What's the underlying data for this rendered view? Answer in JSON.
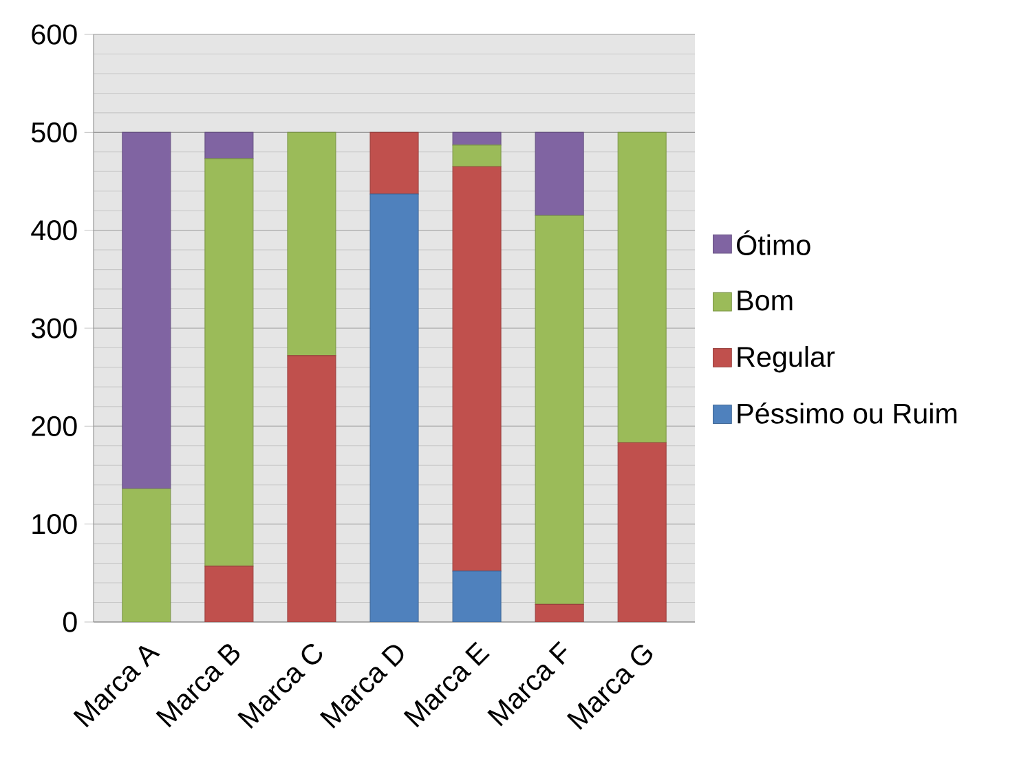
{
  "chart_data": {
    "type": "bar",
    "stacked": true,
    "categories": [
      "Marca A",
      "Marca B",
      "Marca C",
      "Marca D",
      "Marca E",
      "Marca F",
      "Marca G"
    ],
    "series": [
      {
        "name": "Péssimo ou Ruim",
        "color": "#4f81bd",
        "values": [
          0,
          0,
          0,
          437,
          52,
          0,
          0
        ]
      },
      {
        "name": "Regular",
        "color": "#c0504d",
        "values": [
          0,
          57,
          272,
          63,
          413,
          18,
          183
        ]
      },
      {
        "name": "Bom",
        "color": "#9bbb59",
        "values": [
          136,
          416,
          228,
          0,
          22,
          397,
          317
        ]
      },
      {
        "name": "Ótimo",
        "color": "#8064a2",
        "values": [
          364,
          27,
          0,
          0,
          13,
          85,
          0
        ]
      }
    ],
    "ylim": [
      0,
      600
    ],
    "yticks": [
      0,
      100,
      200,
      300,
      400,
      500,
      600
    ],
    "grid": "y",
    "legend": "right"
  }
}
